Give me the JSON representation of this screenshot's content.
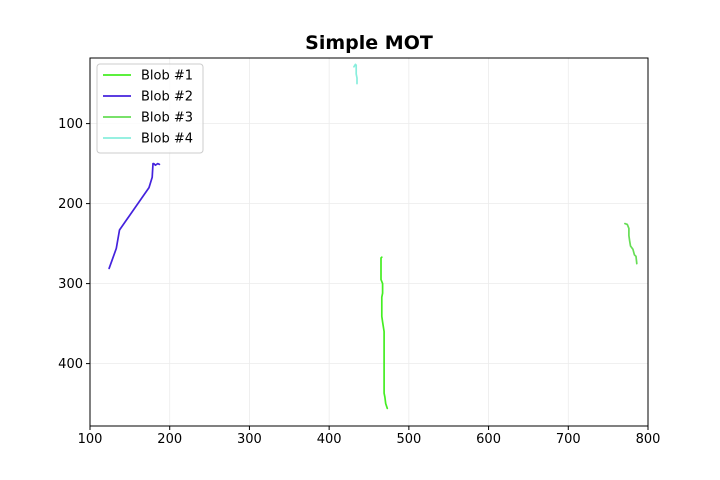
{
  "chart_data": {
    "type": "line",
    "title": "Simple MOT",
    "xlabel": "",
    "ylabel": "",
    "xlim": [
      100,
      800
    ],
    "ylim": [
      478,
      18
    ],
    "y_inverted": true,
    "xticks": [
      100,
      200,
      300,
      400,
      500,
      600,
      700,
      800
    ],
    "yticks": [
      100,
      200,
      300,
      400
    ],
    "grid": true,
    "legend_position": "upper-left",
    "series": [
      {
        "name": "Blob #1",
        "color": "#44ee22",
        "x": [
          466,
          465,
          465,
          465,
          467,
          467,
          467,
          466,
          466,
          467,
          469,
          469,
          469,
          469,
          469,
          469,
          470,
          471,
          473
        ],
        "y": [
          267,
          268,
          275,
          295,
          300,
          305,
          312,
          317,
          341,
          348,
          360,
          375,
          395,
          420,
          430,
          437,
          442,
          450,
          456
        ]
      },
      {
        "name": "Blob #2",
        "color": "#4422dd",
        "x": [
          124,
          128,
          133,
          137,
          174,
          178,
          179,
          180,
          182,
          185,
          187
        ],
        "y": [
          281,
          270,
          256,
          233,
          180,
          167,
          150,
          150,
          152,
          150,
          151
        ]
      },
      {
        "name": "Blob #3",
        "color": "#66dd55",
        "x": [
          771,
          774,
          776,
          776,
          777,
          778,
          781,
          783,
          785,
          786
        ],
        "y": [
          225,
          226,
          231,
          240,
          247,
          253,
          257,
          264,
          266,
          275
        ]
      },
      {
        "name": "Blob #4",
        "color": "#88eedd",
        "x": [
          431,
          433,
          434,
          434,
          435,
          435
        ],
        "y": [
          29,
          26,
          27,
          38,
          43,
          50
        ]
      }
    ]
  }
}
